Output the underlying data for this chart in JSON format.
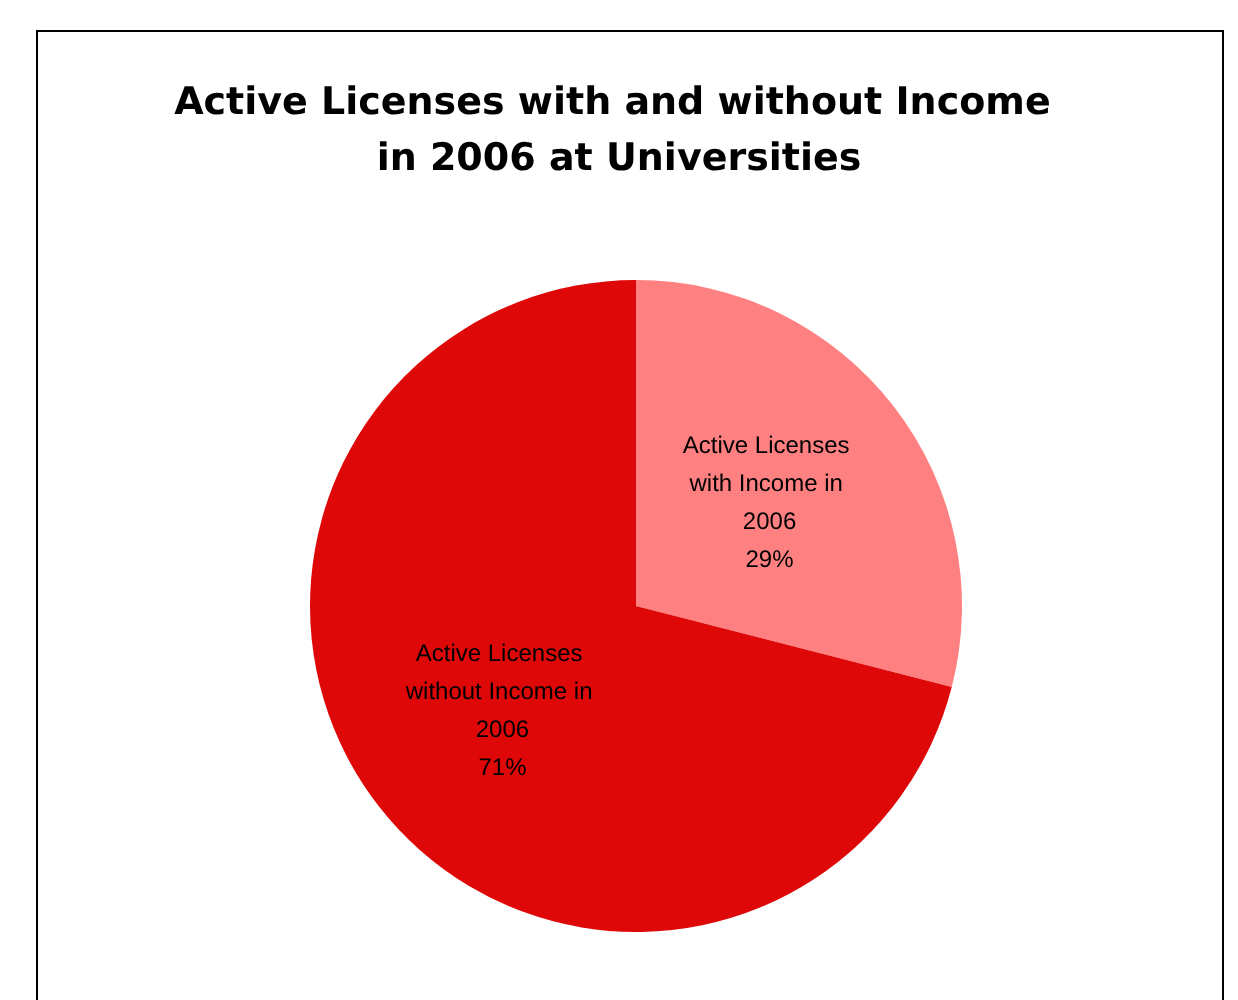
{
  "chart_data": {
    "type": "pie",
    "title": "Active Licenses with and without Income in 2006 at Universities",
    "categories": [
      "Active Licenses with Income in 2006",
      "Active Licenses without Income in 2006"
    ],
    "values": [
      29,
      71
    ],
    "colors": [
      "#ff8080",
      "#df0808"
    ],
    "value_labels": [
      "29%",
      "71%"
    ],
    "legend": false
  }
}
